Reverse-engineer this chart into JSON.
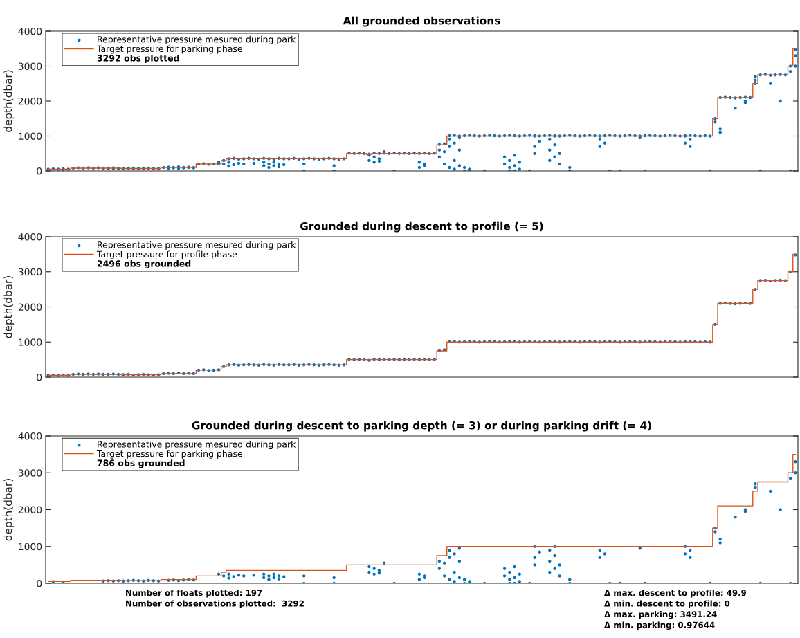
{
  "chart_data": [
    {
      "type": "scatter",
      "title": "All grounded observations",
      "ylabel": "depth(dbar)",
      "categories": [
        null,
        null,
        null,
        null,
        null,
        null,
        null,
        null,
        null,
        null,
        null,
        null,
        null,
        null,
        null,
        null,
        null,
        null,
        null,
        null,
        null,
        null,
        null,
        null,
        null,
        null,
        null,
        null,
        null,
        null,
        null,
        null,
        null,
        null,
        null,
        null,
        null,
        null,
        null,
        null,
        null,
        null,
        null,
        null,
        null,
        null,
        null,
        null,
        null,
        null,
        null,
        null,
        null,
        null,
        null,
        null,
        null,
        null,
        null,
        null,
        null,
        null,
        null,
        null,
        null,
        null,
        null,
        null,
        null,
        null,
        null,
        null,
        null,
        null,
        null,
        null,
        null,
        null,
        null,
        null,
        null,
        null,
        null,
        null,
        null,
        null,
        null,
        null,
        null,
        null,
        null,
        null,
        null,
        null,
        null,
        null,
        null,
        null,
        null,
        null,
        null,
        null,
        null,
        null,
        null,
        null,
        null,
        null,
        null,
        null,
        null,
        null,
        null,
        null,
        null,
        null,
        null,
        null,
        null,
        null,
        null,
        null,
        null,
        null,
        null,
        null,
        null,
        null,
        null,
        null,
        null,
        null,
        null,
        null,
        null,
        null,
        null,
        null,
        null,
        null,
        null,
        null,
        null,
        null,
        null,
        null,
        null,
        null,
        null,
        null
      ],
      "series": [
        {
          "name": "Representative pressure mesured during park",
          "marker": "circle",
          "color": "#0072bd",
          "values": [
            50,
            60,
            50,
            60,
            50,
            80,
            90,
            80,
            90,
            80,
            90,
            80,
            80,
            90,
            80,
            70,
            80,
            60,
            70,
            80,
            70,
            60,
            70,
            100,
            110,
            100,
            120,
            100,
            110,
            100,
            200,
            210,
            190,
            200,
            210,
            300,
            350,
            360,
            340,
            350,
            360,
            350,
            340,
            360,
            350,
            340,
            360,
            350,
            350,
            360,
            340,
            350,
            360,
            350,
            340,
            350,
            360,
            350,
            340,
            350,
            510,
            500,
            510,
            500,
            480,
            510,
            500,
            510,
            500,
            510,
            500,
            510,
            500,
            510,
            500,
            510,
            500,
            510,
            760,
            780,
            1010,
            1020,
            1000,
            1010,
            1020,
            1010,
            1000,
            1010,
            1020,
            1010,
            1000,
            1010,
            1020,
            1010,
            1000,
            1010,
            1020,
            1010,
            1000,
            1010,
            1020,
            1010,
            1000,
            1010,
            1020,
            1010,
            1000,
            1010,
            1020,
            1010,
            1000,
            1010,
            1020,
            1010,
            1000,
            1010,
            1020,
            1010,
            1000,
            1010,
            1020,
            1010,
            1000,
            1010,
            1020,
            1010,
            1000,
            1010,
            1020,
            1010,
            1000,
            1010,
            1000,
            1500,
            2100,
            2110,
            2100,
            2090,
            2100,
            2110,
            2100,
            2500,
            2750,
            2760,
            2740,
            2750,
            2760,
            2750,
            3000,
            3480
          ]
        },
        {
          "marker": "circle",
          "color": "#0072bd",
          "values": [
            null,
            50,
            null,
            40,
            null,
            null,
            null,
            null,
            null,
            null,
            null,
            60,
            70,
            60,
            70,
            60,
            70,
            80,
            70,
            60,
            80,
            70,
            60,
            null,
            80,
            90,
            70,
            90,
            100,
            90,
            null,
            null,
            null,
            null,
            250,
            200,
            250,
            180,
            220,
            200,
            null,
            220,
            null,
            150,
            100,
            150,
            120,
            180,
            null,
            null,
            null,
            200,
            null,
            null,
            null,
            null,
            null,
            150,
            null,
            null,
            null,
            null,
            null,
            null,
            300,
            250,
            350,
            550,
            null,
            0,
            null,
            null,
            null,
            null,
            100,
            150,
            null,
            null,
            400,
            200,
            700,
            300,
            600,
            100,
            50,
            null,
            null,
            0,
            null,
            null,
            null,
            200,
            0,
            150,
            50,
            null,
            0,
            700,
            850,
            null,
            600,
            400,
            200,
            null,
            100,
            null,
            null,
            null,
            null,
            null,
            900,
            800,
            0,
            null,
            0,
            null,
            null,
            null,
            950,
            0,
            null,
            null,
            null,
            null,
            null,
            null,
            null,
            1000,
            900,
            null,
            null,
            null,
            0,
            1400,
            1100,
            null,
            null,
            1800,
            null,
            2000,
            null,
            2600,
            0,
            null,
            2500,
            null,
            2000,
            null,
            2850,
            3000
          ]
        },
        {
          "marker": "circle",
          "color": "#0072bd",
          "values": [
            null,
            null,
            null,
            null,
            null,
            null,
            null,
            null,
            null,
            null,
            null,
            null,
            null,
            null,
            null,
            null,
            null,
            null,
            null,
            null,
            null,
            null,
            null,
            null,
            null,
            null,
            null,
            null,
            null,
            null,
            null,
            null,
            null,
            null,
            null,
            null,
            140,
            null,
            null,
            null,
            null,
            null,
            null,
            250,
            200,
            250,
            200,
            null,
            null,
            null,
            null,
            0,
            null,
            null,
            null,
            null,
            null,
            0,
            null,
            null,
            null,
            null,
            null,
            null,
            450,
            400,
            280,
            null,
            null,
            null,
            null,
            null,
            null,
            null,
            250,
            200,
            null,
            null,
            600,
            550,
            100,
            800,
            150,
            0,
            0,
            null,
            null,
            null,
            null,
            null,
            null,
            400,
            300,
            450,
            250,
            null,
            null,
            1000,
            null,
            null,
            900,
            750,
            500,
            null,
            0,
            null,
            null,
            null,
            null,
            null,
            700,
            null,
            null,
            null,
            null,
            null,
            null,
            null,
            null,
            null,
            null,
            null,
            null,
            null,
            null,
            null,
            null,
            800,
            700,
            null,
            null,
            null,
            null,
            1500,
            1200,
            null,
            null,
            null,
            null,
            1950,
            null,
            2700,
            null,
            null,
            null,
            null,
            null,
            null,
            0,
            3300
          ]
        },
        {
          "marker": "circle",
          "color": "#0072bd",
          "values": [
            null,
            null,
            null,
            null,
            null,
            null,
            null,
            null,
            null,
            null,
            null,
            null,
            null,
            null,
            null,
            null,
            null,
            null,
            null,
            null,
            null,
            null,
            null,
            null,
            null,
            null,
            null,
            null,
            null,
            null,
            null,
            null,
            null,
            null,
            null,
            null,
            null,
            null,
            null,
            null,
            null,
            null,
            null,
            null,
            null,
            null,
            null,
            null,
            null,
            null,
            null,
            null,
            null,
            null,
            null,
            null,
            null,
            null,
            null,
            null,
            null,
            null,
            null,
            null,
            null,
            null,
            null,
            null,
            null,
            null,
            null,
            null,
            null,
            null,
            null,
            null,
            null,
            null,
            null,
            null,
            900,
            50,
            950,
            null,
            null,
            null,
            null,
            null,
            null,
            null,
            null,
            null,
            100,
            0,
            null,
            null,
            null,
            500,
            null,
            null,
            300,
            1000,
            null,
            null,
            null,
            null,
            null,
            null,
            null,
            null,
            null,
            null,
            null,
            null,
            null,
            null,
            null,
            null,
            null,
            null,
            null,
            null,
            null,
            null,
            null,
            null,
            null,
            null,
            null,
            null,
            null,
            null,
            null,
            null,
            null,
            null,
            null,
            null,
            null,
            null,
            null,
            null,
            null,
            null,
            null,
            null,
            null,
            null,
            null,
            null
          ]
        },
        {
          "name": "Target pressure for parking phase",
          "type": "step",
          "marker": "none",
          "color": "#d95319",
          "line_style": "solid",
          "values": [
            50,
            50,
            50,
            50,
            50,
            80,
            80,
            80,
            80,
            80,
            80,
            80,
            80,
            80,
            80,
            70,
            70,
            70,
            70,
            70,
            70,
            70,
            70,
            100,
            100,
            100,
            100,
            100,
            100,
            100,
            200,
            200,
            200,
            200,
            200,
            300,
            350,
            350,
            350,
            350,
            350,
            350,
            350,
            350,
            350,
            350,
            350,
            350,
            350,
            350,
            350,
            350,
            350,
            350,
            350,
            350,
            350,
            350,
            350,
            350,
            500,
            500,
            500,
            500,
            470,
            500,
            500,
            500,
            500,
            500,
            500,
            500,
            500,
            500,
            500,
            500,
            500,
            500,
            750,
            750,
            1000,
            1000,
            1000,
            1000,
            1000,
            1000,
            1000,
            1000,
            1000,
            1000,
            1000,
            1000,
            1000,
            1000,
            1000,
            1000,
            1000,
            1000,
            1000,
            1000,
            1000,
            1000,
            1000,
            1000,
            1000,
            1000,
            1000,
            1000,
            1000,
            1000,
            1000,
            1000,
            1000,
            1000,
            1000,
            1000,
            1000,
            1000,
            1000,
            1000,
            1000,
            1000,
            1000,
            1000,
            1000,
            1000,
            1000,
            1000,
            1000,
            1000,
            1000,
            1000,
            1000,
            1500,
            2100,
            2100,
            2100,
            2100,
            2100,
            2100,
            2100,
            2500,
            2750,
            2750,
            2750,
            2750,
            2750,
            2750,
            3000,
            3500
          ]
        }
      ],
      "ylim": [
        0,
        4000
      ],
      "yticks": [
        0,
        1000,
        2000,
        3000,
        4000
      ],
      "tick_labels": "y",
      "legend": "top left",
      "annotations": [
        "3292 obs plotted"
      ]
    },
    {
      "type": "scatter",
      "title": "Grounded during descent to profile (= 5)",
      "ylabel": "depth(dbar)",
      "categories": [
        null,
        null,
        null,
        null,
        null,
        null,
        null,
        null,
        null,
        null,
        null,
        null,
        null,
        null,
        null,
        null,
        null,
        null,
        null,
        null,
        null,
        null,
        null,
        null,
        null,
        null,
        null,
        null,
        null,
        null,
        null,
        null,
        null,
        null,
        null,
        null,
        null,
        null,
        null,
        null,
        null,
        null,
        null,
        null,
        null,
        null,
        null,
        null,
        null,
        null,
        null,
        null,
        null,
        null,
        null,
        null,
        null,
        null,
        null,
        null,
        null,
        null,
        null,
        null,
        null,
        null,
        null,
        null,
        null,
        null,
        null,
        null,
        null,
        null,
        null,
        null,
        null,
        null,
        null,
        null,
        null,
        null,
        null,
        null,
        null,
        null,
        null,
        null,
        null,
        null,
        null,
        null,
        null,
        null,
        null,
        null,
        null,
        null,
        null,
        null,
        null,
        null,
        null,
        null,
        null,
        null,
        null,
        null,
        null,
        null,
        null,
        null,
        null,
        null,
        null,
        null,
        null,
        null,
        null,
        null,
        null,
        null,
        null,
        null,
        null,
        null,
        null,
        null,
        null,
        null,
        null,
        null,
        null,
        null,
        null,
        null,
        null,
        null,
        null,
        null,
        null,
        null,
        null,
        null,
        null,
        null,
        null,
        null,
        null,
        null
      ],
      "series": [
        {
          "name": "Representative pressure mesured during park",
          "marker": "circle",
          "color": "#0072bd",
          "values": [
            50,
            60,
            50,
            60,
            50,
            80,
            90,
            80,
            90,
            80,
            90,
            80,
            80,
            90,
            80,
            70,
            80,
            60,
            70,
            80,
            70,
            60,
            70,
            100,
            110,
            100,
            120,
            100,
            110,
            100,
            200,
            210,
            190,
            200,
            210,
            300,
            350,
            360,
            340,
            350,
            360,
            350,
            340,
            360,
            350,
            340,
            360,
            350,
            350,
            360,
            340,
            350,
            360,
            350,
            340,
            350,
            360,
            350,
            340,
            350,
            510,
            500,
            510,
            500,
            480,
            510,
            500,
            510,
            500,
            510,
            500,
            510,
            500,
            510,
            500,
            510,
            500,
            510,
            760,
            780,
            1010,
            1020,
            1000,
            1010,
            1020,
            1010,
            1000,
            1010,
            1020,
            1010,
            1000,
            1010,
            1020,
            1010,
            1000,
            1010,
            1020,
            1010,
            1000,
            1010,
            1020,
            1010,
            1000,
            1010,
            1020,
            1010,
            1000,
            1010,
            1020,
            1010,
            1000,
            1010,
            1020,
            1010,
            1000,
            1010,
            1020,
            1010,
            1000,
            1010,
            1020,
            1010,
            1000,
            1010,
            1020,
            1010,
            1000,
            1010,
            1020,
            1010,
            1000,
            1010,
            1000,
            1500,
            2100,
            2110,
            2100,
            2090,
            2100,
            2110,
            2100,
            2500,
            2750,
            2760,
            2740,
            2750,
            2760,
            2750,
            3000,
            3480
          ]
        },
        {
          "name": "Target pressure for profile phase",
          "type": "step",
          "marker": "none",
          "color": "#d95319",
          "line_style": "solid",
          "values": [
            50,
            50,
            50,
            50,
            50,
            80,
            80,
            80,
            80,
            80,
            80,
            80,
            80,
            80,
            80,
            70,
            70,
            70,
            70,
            70,
            70,
            70,
            70,
            100,
            100,
            100,
            100,
            100,
            100,
            100,
            200,
            200,
            200,
            200,
            200,
            300,
            350,
            350,
            350,
            350,
            350,
            350,
            350,
            350,
            350,
            350,
            350,
            350,
            350,
            350,
            350,
            350,
            350,
            350,
            350,
            350,
            350,
            350,
            350,
            350,
            500,
            500,
            500,
            500,
            500,
            500,
            500,
            500,
            500,
            500,
            500,
            500,
            500,
            500,
            500,
            500,
            500,
            500,
            750,
            750,
            1000,
            1000,
            1000,
            1000,
            1000,
            1000,
            1000,
            1000,
            1000,
            1000,
            1000,
            1000,
            1000,
            1000,
            1000,
            1000,
            1000,
            1000,
            1000,
            1000,
            1000,
            1000,
            1000,
            1000,
            1000,
            1000,
            1000,
            1000,
            1000,
            1000,
            1000,
            1000,
            1000,
            1000,
            1000,
            1000,
            1000,
            1000,
            1000,
            1000,
            1000,
            1000,
            1000,
            1000,
            1000,
            1000,
            1000,
            1000,
            1000,
            1000,
            1000,
            1000,
            1000,
            1500,
            2100,
            2100,
            2100,
            2100,
            2100,
            2100,
            2100,
            2500,
            2750,
            2750,
            2750,
            2750,
            2750,
            2750,
            3000,
            3500
          ]
        }
      ],
      "ylim": [
        0,
        4000
      ],
      "yticks": [
        0,
        1000,
        2000,
        3000,
        4000
      ],
      "tick_labels": "y",
      "legend": "top left",
      "annotations": [
        "2496 obs grounded"
      ]
    },
    {
      "type": "scatter",
      "title": "Grounded during descent to parking depth (= 3) or during parking drift (= 4)",
      "ylabel": "depth(dbar)",
      "categories": [
        null,
        null,
        null,
        null,
        null,
        null,
        null,
        null,
        null,
        null,
        null,
        null,
        null,
        null,
        null,
        null,
        null,
        null,
        null,
        null,
        null,
        null,
        null,
        null,
        null,
        null,
        null,
        null,
        null,
        null,
        null,
        null,
        null,
        null,
        null,
        null,
        null,
        null,
        null,
        null,
        null,
        null,
        null,
        null,
        null,
        null,
        null,
        null,
        null,
        null,
        null,
        null,
        null,
        null,
        null,
        null,
        null,
        null,
        null,
        null,
        null,
        null,
        null,
        null,
        null,
        null,
        null,
        null,
        null,
        null,
        null,
        null,
        null,
        null,
        null,
        null,
        null,
        null,
        null,
        null,
        null,
        null,
        null,
        null,
        null,
        null,
        null,
        null,
        null,
        null,
        null,
        null,
        null,
        null,
        null,
        null,
        null,
        null,
        null,
        null,
        null,
        null,
        null,
        null,
        null,
        null,
        null,
        null,
        null,
        null,
        null,
        null,
        null,
        null,
        null,
        null,
        null,
        null,
        null,
        null,
        null,
        null,
        null,
        null,
        null,
        null,
        null,
        null,
        null,
        null,
        null,
        null,
        null,
        null,
        null,
        null,
        null,
        null,
        null,
        null,
        null,
        null,
        null,
        null,
        null,
        null,
        null,
        null,
        null,
        null
      ],
      "series": [
        {
          "name": "Representative pressure mesured during park",
          "marker": "circle",
          "color": "#0072bd",
          "values": [
            null,
            50,
            null,
            40,
            null,
            null,
            null,
            null,
            null,
            null,
            null,
            60,
            70,
            60,
            70,
            60,
            70,
            80,
            70,
            60,
            80,
            70,
            60,
            null,
            80,
            90,
            70,
            90,
            100,
            90,
            null,
            null,
            null,
            null,
            250,
            200,
            250,
            180,
            220,
            200,
            null,
            220,
            null,
            150,
            100,
            150,
            120,
            180,
            null,
            null,
            null,
            200,
            null,
            null,
            null,
            null,
            null,
            150,
            null,
            null,
            null,
            null,
            null,
            null,
            300,
            250,
            350,
            550,
            null,
            0,
            null,
            null,
            null,
            null,
            100,
            150,
            null,
            null,
            400,
            200,
            700,
            300,
            600,
            100,
            50,
            null,
            null,
            0,
            null,
            null,
            null,
            200,
            0,
            150,
            50,
            null,
            0,
            700,
            850,
            null,
            600,
            400,
            200,
            null,
            100,
            null,
            null,
            null,
            null,
            null,
            900,
            800,
            0,
            null,
            0,
            null,
            null,
            null,
            950,
            0,
            null,
            null,
            null,
            null,
            null,
            null,
            null,
            1000,
            900,
            null,
            null,
            null,
            0,
            1400,
            1100,
            null,
            null,
            1800,
            null,
            2000,
            null,
            2600,
            0,
            null,
            2500,
            null,
            2000,
            null,
            2850,
            3000
          ]
        },
        {
          "marker": "circle",
          "color": "#0072bd",
          "values": [
            null,
            null,
            null,
            null,
            null,
            null,
            null,
            null,
            null,
            null,
            null,
            null,
            null,
            null,
            null,
            null,
            null,
            null,
            null,
            null,
            null,
            null,
            null,
            null,
            null,
            null,
            null,
            null,
            null,
            null,
            null,
            null,
            null,
            null,
            null,
            null,
            140,
            null,
            null,
            null,
            null,
            null,
            null,
            250,
            200,
            250,
            200,
            null,
            null,
            null,
            null,
            0,
            null,
            null,
            null,
            null,
            null,
            0,
            null,
            null,
            null,
            null,
            null,
            null,
            450,
            400,
            280,
            null,
            null,
            null,
            null,
            null,
            null,
            null,
            250,
            200,
            null,
            null,
            600,
            550,
            100,
            800,
            150,
            0,
            0,
            null,
            null,
            null,
            null,
            null,
            null,
            400,
            300,
            450,
            250,
            null,
            null,
            1000,
            null,
            null,
            900,
            750,
            500,
            null,
            0,
            null,
            null,
            null,
            null,
            null,
            700,
            null,
            null,
            null,
            null,
            null,
            null,
            null,
            null,
            null,
            null,
            null,
            null,
            null,
            null,
            null,
            null,
            800,
            700,
            null,
            null,
            null,
            null,
            1500,
            1200,
            null,
            null,
            null,
            null,
            1950,
            null,
            2700,
            null,
            null,
            null,
            null,
            null,
            null,
            0,
            3300
          ]
        },
        {
          "marker": "circle",
          "color": "#0072bd",
          "values": [
            null,
            null,
            null,
            null,
            null,
            null,
            null,
            null,
            null,
            null,
            null,
            null,
            null,
            null,
            null,
            null,
            null,
            null,
            null,
            null,
            null,
            null,
            null,
            null,
            null,
            null,
            null,
            null,
            null,
            null,
            null,
            null,
            null,
            null,
            null,
            null,
            null,
            null,
            null,
            null,
            null,
            null,
            null,
            null,
            null,
            null,
            null,
            null,
            null,
            null,
            null,
            null,
            null,
            null,
            null,
            null,
            null,
            null,
            null,
            null,
            null,
            null,
            null,
            null,
            null,
            null,
            null,
            null,
            null,
            null,
            null,
            null,
            null,
            null,
            null,
            null,
            null,
            null,
            null,
            null,
            900,
            50,
            950,
            null,
            null,
            null,
            null,
            null,
            null,
            null,
            null,
            null,
            100,
            0,
            null,
            null,
            null,
            500,
            null,
            null,
            300,
            1000,
            null,
            null,
            null,
            null,
            null,
            null,
            null,
            null,
            null,
            null,
            null,
            null,
            null,
            null,
            null,
            null,
            null,
            null,
            null,
            null,
            null,
            null,
            null,
            null,
            null,
            null,
            null,
            null,
            null,
            null,
            null,
            null,
            null,
            null,
            null,
            null,
            null,
            null,
            null,
            null,
            null,
            null,
            null,
            null,
            null,
            null,
            null,
            null
          ]
        },
        {
          "name": "Target pressure for parking phase",
          "type": "step",
          "marker": "none",
          "color": "#d95319",
          "line_style": "solid",
          "values": [
            50,
            50,
            50,
            50,
            50,
            80,
            80,
            80,
            80,
            80,
            80,
            80,
            80,
            80,
            80,
            70,
            70,
            70,
            70,
            70,
            70,
            70,
            70,
            100,
            100,
            100,
            100,
            100,
            100,
            100,
            200,
            200,
            200,
            200,
            200,
            300,
            350,
            350,
            350,
            350,
            350,
            350,
            350,
            350,
            350,
            350,
            350,
            350,
            350,
            350,
            350,
            350,
            350,
            350,
            350,
            350,
            350,
            350,
            350,
            350,
            500,
            500,
            500,
            500,
            500,
            500,
            500,
            500,
            500,
            500,
            500,
            500,
            500,
            500,
            500,
            500,
            500,
            500,
            750,
            750,
            1000,
            1000,
            1000,
            1000,
            1000,
            1000,
            1000,
            1000,
            1000,
            1000,
            1000,
            1000,
            1000,
            1000,
            1000,
            1000,
            1000,
            1000,
            1000,
            1000,
            1000,
            1000,
            1000,
            1000,
            1000,
            1000,
            1000,
            1000,
            1000,
            1000,
            1000,
            1000,
            1000,
            1000,
            1000,
            1000,
            1000,
            1000,
            1000,
            1000,
            1000,
            1000,
            1000,
            1000,
            1000,
            1000,
            1000,
            1000,
            1000,
            1000,
            1000,
            1000,
            1000,
            1500,
            2100,
            2100,
            2100,
            2100,
            2100,
            2100,
            2100,
            2500,
            2750,
            2750,
            2750,
            2750,
            2750,
            2750,
            3000,
            3500
          ]
        }
      ],
      "ylim": [
        0,
        4000
      ],
      "yticks": [
        0,
        1000,
        2000,
        3000,
        4000
      ],
      "tick_labels": "y",
      "legend": "top left",
      "annotations": [
        "786 obs grounded",
        "Number of floats plotted: 197\nNumber of observations plotted:  3292",
        "Δ max. descent to profile: 49.9\nΔ min. descent to profile: 0\nΔ max. parking: 3491.24\nΔ min. parking: 0.97644"
      ]
    }
  ]
}
